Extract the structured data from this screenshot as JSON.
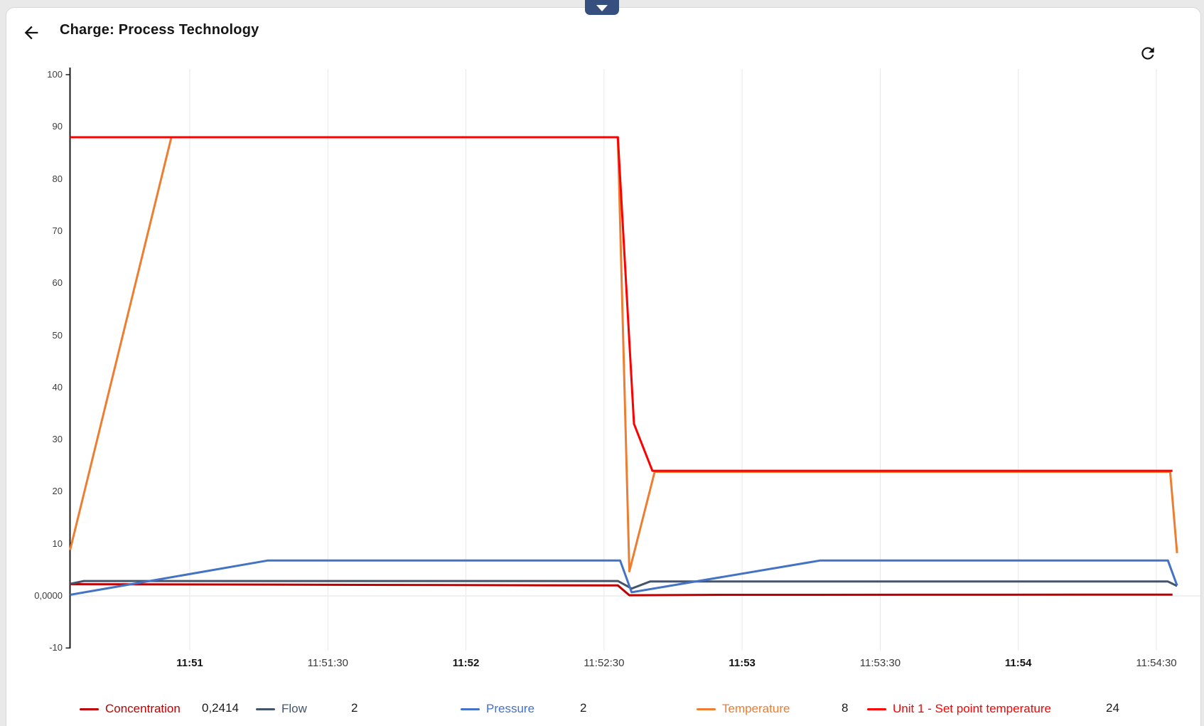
{
  "header": {
    "title": "Charge: Process Technology",
    "back_icon": "arrow-left",
    "refresh_icon": "refresh"
  },
  "pull_tab": {
    "icon": "chevron-down",
    "color": "#364f7e"
  },
  "chart_data": {
    "type": "line",
    "title": "Charge: Process Technology",
    "x_start": "11:50:34",
    "x_end": "11:54:35",
    "ylim": [
      -10,
      100
    ],
    "grid": "vertical",
    "legend_position": "bottom",
    "y_ticks": [
      {
        "label": "100",
        "v": 100
      },
      {
        "label": "90",
        "v": 90
      },
      {
        "label": "80",
        "v": 80
      },
      {
        "label": "70",
        "v": 70
      },
      {
        "label": "60",
        "v": 60
      },
      {
        "label": "50",
        "v": 50
      },
      {
        "label": "40",
        "v": 40
      },
      {
        "label": "30",
        "v": 30
      },
      {
        "label": "20",
        "v": 20
      },
      {
        "label": "10",
        "v": 10
      },
      {
        "label": "0,0000",
        "v": 0
      },
      {
        "label": "-10",
        "v": -10
      }
    ],
    "x_ticks": [
      {
        "label": "11:51",
        "t": 60,
        "bold": true
      },
      {
        "label": "11:51:30",
        "t": 90,
        "bold": false
      },
      {
        "label": "11:52",
        "t": 120,
        "bold": true
      },
      {
        "label": "11:52:30",
        "t": 150,
        "bold": false
      },
      {
        "label": "11:53",
        "t": 180,
        "bold": true
      },
      {
        "label": "11:53:30",
        "t": 210,
        "bold": false
      },
      {
        "label": "11:54",
        "t": 240,
        "bold": true
      },
      {
        "label": "11:54:30",
        "t": 270,
        "bold": false
      }
    ],
    "series": [
      {
        "name": "Concentration",
        "color": "#c00000",
        "current_value": "0,2414",
        "points": [
          [
            34,
            2.25
          ],
          [
            150,
            2.0
          ],
          [
            153,
            2.0
          ],
          [
            155.5,
            0.12
          ],
          [
            175,
            0.2
          ],
          [
            273.5,
            0.24
          ]
        ]
      },
      {
        "name": "Flow",
        "color": "#44546a",
        "current_value": "2",
        "points": [
          [
            34,
            2.3
          ],
          [
            37,
            2.85
          ],
          [
            153,
            2.85
          ],
          [
            156,
            1.4
          ],
          [
            160,
            2.75
          ],
          [
            272.5,
            2.75
          ],
          [
            274.5,
            1.9
          ]
        ]
      },
      {
        "name": "Pressure",
        "color": "#4472c4",
        "current_value": "2",
        "points": [
          [
            34,
            0.2
          ],
          [
            77,
            6.8
          ],
          [
            153.5,
            6.8
          ],
          [
            156,
            0.7
          ],
          [
            197,
            6.8
          ],
          [
            272.5,
            6.8
          ],
          [
            274.5,
            2.0
          ]
        ]
      },
      {
        "name": "Temperature",
        "color": "#ed7d31",
        "current_value": "8",
        "points": [
          [
            34,
            8.8
          ],
          [
            56,
            88
          ],
          [
            153,
            88
          ],
          [
            155.5,
            4.7
          ],
          [
            161,
            23.8
          ],
          [
            273,
            23.8
          ],
          [
            274.5,
            8.2
          ]
        ]
      },
      {
        "name": "Unit 1 - Set point temperature",
        "color": "#fe0000",
        "current_value": "24",
        "points": [
          [
            34,
            88
          ],
          [
            153,
            88
          ],
          [
            156.5,
            33
          ],
          [
            160.5,
            24
          ],
          [
            273.5,
            24
          ]
        ]
      }
    ]
  }
}
